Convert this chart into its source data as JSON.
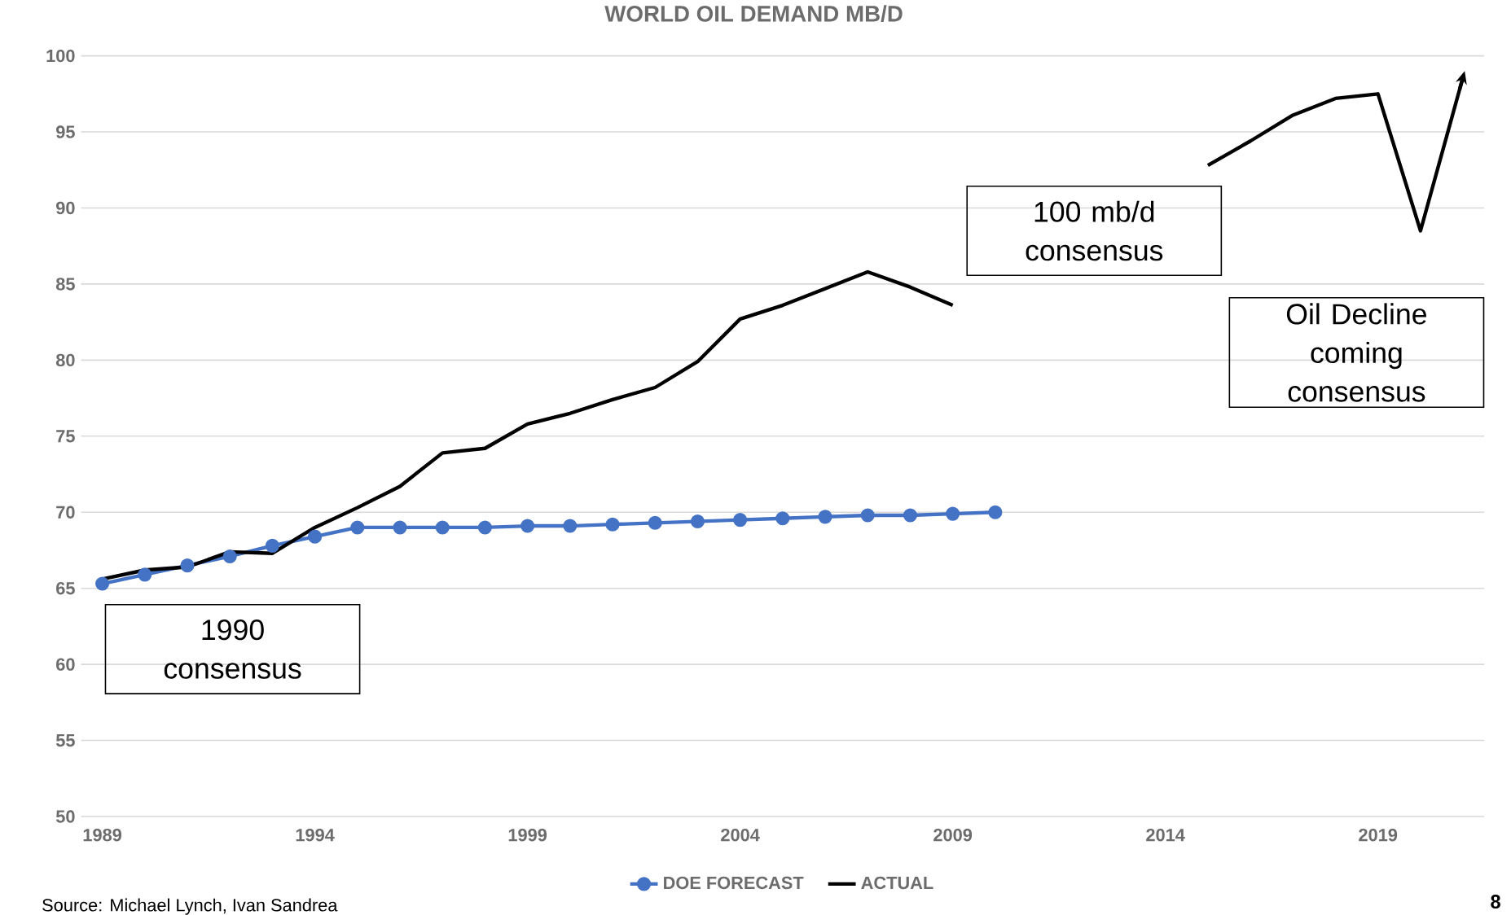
{
  "chart_data": {
    "type": "line",
    "title": "WORLD OIL DEMAND MB/D",
    "x": [
      1989,
      1990,
      1991,
      1992,
      1993,
      1994,
      1995,
      1996,
      1997,
      1998,
      1999,
      2000,
      2001,
      2002,
      2003,
      2004,
      2005,
      2006,
      2007,
      2008,
      2009,
      2010,
      2011,
      2012,
      2013,
      2014,
      2015,
      2016,
      2017,
      2018,
      2019,
      2020,
      2021
    ],
    "series": [
      {
        "name": "DOE FORECAST",
        "color": "#4472c4",
        "marker": "circle",
        "values": [
          65.3,
          65.9,
          66.5,
          67.1,
          67.8,
          68.4,
          69.0,
          69.0,
          69.0,
          69.0,
          69.1,
          69.1,
          69.2,
          69.3,
          69.4,
          69.5,
          69.6,
          69.7,
          69.8,
          69.8,
          69.9,
          70.0,
          null,
          null,
          null,
          null,
          null,
          null,
          null,
          null,
          null,
          null,
          null
        ]
      },
      {
        "name": "ACTUAL",
        "color": "#000000",
        "marker": "none",
        "values": [
          65.6,
          66.2,
          66.4,
          67.4,
          67.3,
          69.0,
          70.3,
          71.7,
          73.9,
          74.2,
          75.8,
          76.5,
          77.4,
          78.2,
          79.9,
          82.7,
          83.6,
          84.7,
          85.8,
          84.8,
          83.6,
          null,
          null,
          null,
          null,
          null,
          92.8,
          94.4,
          96.1,
          97.2,
          97.5,
          88.5,
          98.6
        ]
      }
    ],
    "xlim": [
      1988.5,
      2021.5
    ],
    "ylim": [
      50,
      100
    ],
    "xticks": [
      1989,
      1994,
      1999,
      2004,
      2009,
      2014,
      2019
    ],
    "yticks": [
      50,
      55,
      60,
      65,
      70,
      75,
      80,
      85,
      90,
      95,
      100
    ],
    "grid": "y",
    "legend": "bottom",
    "annotations": [
      "1990 consensus",
      "100 mb/d consensus",
      "Oil Decline coming consensus",
      "Source: Michael Lynch, Ivan Sandrea",
      "8"
    ]
  }
}
